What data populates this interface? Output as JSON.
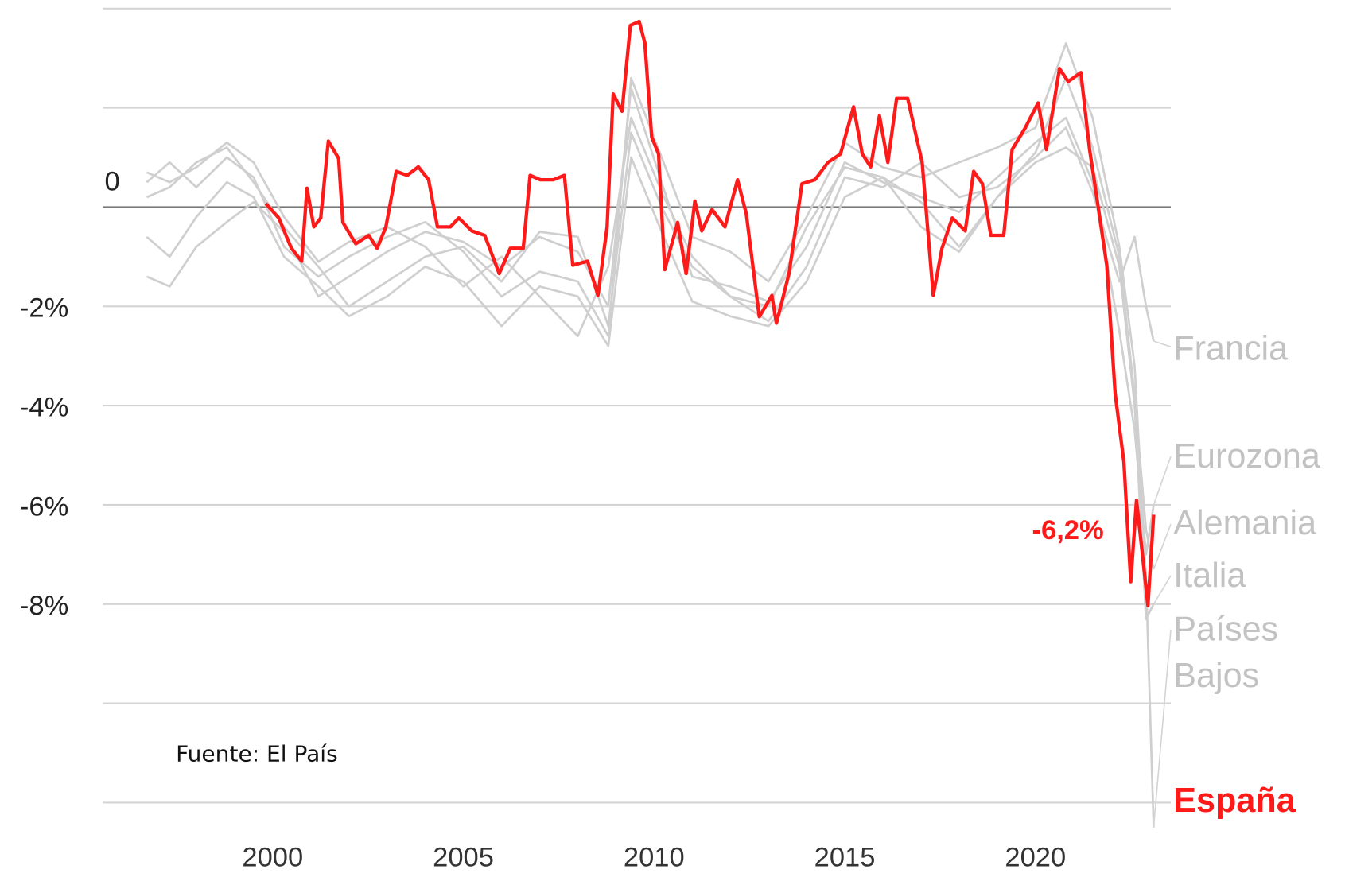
{
  "chart_data": {
    "type": "line",
    "source": "Fuente: El País",
    "xlim": [
      1995.55,
      2023.55
    ],
    "xticks": [
      2000,
      2005,
      2010,
      2015,
      2020
    ],
    "ylim": [
      -13.5,
      4
    ],
    "yticks": [
      {
        "value": 0,
        "label": "0"
      },
      {
        "value": -2,
        "label": "-2%"
      },
      {
        "value": -4,
        "label": "-4%"
      },
      {
        "value": -6,
        "label": "-6%"
      },
      {
        "value": -8,
        "label": "-8%"
      }
    ],
    "gridlines": [
      4,
      2,
      0,
      -2,
      -4,
      -6,
      -8,
      -10,
      -12
    ],
    "grid": true,
    "series": [
      {
        "name": "Francia",
        "color": "#cfcfcf",
        "x": [
          1996.7,
          1997.3,
          1998.0,
          1998.8,
          1999.5,
          2000.3,
          2001.2,
          2002.0,
          2003.0,
          2004.0,
          2005.0,
          2006.0,
          2007.0,
          2008.0,
          2008.8,
          2009.4,
          2010.2,
          2011.0,
          2012.0,
          2013.0,
          2014.0,
          2015.0,
          2016.0,
          2017.0,
          2018.0,
          2019.0,
          2020.0,
          2020.8,
          2021.5,
          2022.2,
          2022.6,
          2022.9,
          2023.1
        ],
        "values": [
          0.7,
          0.5,
          0.8,
          1.3,
          0.9,
          -0.2,
          -1.1,
          -0.7,
          -0.4,
          -0.8,
          -1.6,
          -1.0,
          -1.8,
          -2.6,
          -1.2,
          1.8,
          0.3,
          -1.0,
          -1.8,
          -2.3,
          -1.2,
          0.6,
          0.4,
          0.9,
          0.2,
          0.4,
          1.0,
          1.6,
          0.3,
          -1.5,
          -0.6,
          -2.0,
          -2.7
        ]
      },
      {
        "name": "Eurozona",
        "color": "#cfcfcf",
        "x": [
          1996.7,
          1997.3,
          1998.0,
          1998.8,
          1999.5,
          2000.3,
          2001.2,
          2002.0,
          2003.0,
          2004.0,
          2005.0,
          2006.0,
          2007.0,
          2008.0,
          2008.8,
          2009.4,
          2010.2,
          2011.0,
          2012.0,
          2013.0,
          2014.0,
          2015.0,
          2016.0,
          2017.0,
          2018.0,
          2019.0,
          2020.0,
          2020.8,
          2021.5,
          2022.2,
          2022.6,
          2022.9,
          2023.1
        ],
        "values": [
          -1.4,
          -1.6,
          -0.8,
          -0.3,
          0.1,
          -0.5,
          -1.8,
          -1.4,
          -0.9,
          -0.5,
          -0.7,
          -1.2,
          -0.6,
          -0.9,
          -2.0,
          2.4,
          0.5,
          -1.4,
          -1.6,
          -1.9,
          -0.8,
          0.9,
          0.5,
          0.2,
          -0.1,
          0.6,
          1.3,
          1.8,
          0.5,
          -2.5,
          -4.5,
          -7.0,
          -6.0
        ]
      },
      {
        "name": "Alemania",
        "color": "#cfcfcf",
        "x": [
          1996.7,
          1997.3,
          1998.0,
          1998.8,
          1999.5,
          2000.3,
          2001.2,
          2002.0,
          2003.0,
          2004.0,
          2005.0,
          2006.0,
          2007.0,
          2008.0,
          2008.8,
          2009.4,
          2010.2,
          2011.0,
          2012.0,
          2013.0,
          2014.0,
          2015.0,
          2016.0,
          2017.0,
          2018.0,
          2019.0,
          2020.0,
          2020.8,
          2021.5,
          2022.2,
          2022.6,
          2022.9,
          2023.1
        ],
        "values": [
          0.2,
          0.4,
          0.9,
          1.2,
          0.5,
          -0.4,
          -1.2,
          -2.0,
          -1.5,
          -1.0,
          -0.8,
          -1.5,
          -0.5,
          -0.6,
          -2.4,
          1.5,
          0.0,
          -1.2,
          -1.8,
          -2.0,
          -0.4,
          0.8,
          0.6,
          0.1,
          -0.8,
          0.2,
          1.1,
          2.6,
          1.2,
          -1.0,
          -3.8,
          -6.5,
          -7.3
        ]
      },
      {
        "name": "Italia",
        "color": "#cfcfcf",
        "x": [
          1996.7,
          1997.3,
          1998.0,
          1998.8,
          1999.5,
          2000.3,
          2001.2,
          2002.0,
          2003.0,
          2004.0,
          2005.0,
          2006.0,
          2007.0,
          2008.0,
          2008.8,
          2009.4,
          2010.2,
          2011.0,
          2012.0,
          2013.0,
          2014.0,
          2015.0,
          2016.0,
          2017.0,
          2018.0,
          2019.0,
          2020.0,
          2020.8,
          2021.5,
          2022.2,
          2022.6,
          2022.9,
          2023.1
        ],
        "values": [
          -0.6,
          -1.0,
          -0.2,
          0.5,
          0.2,
          -1.0,
          -1.6,
          -2.2,
          -1.8,
          -1.2,
          -1.5,
          -2.4,
          -1.6,
          -1.8,
          -2.8,
          1.0,
          -0.5,
          -1.9,
          -2.2,
          -2.4,
          -1.5,
          0.2,
          0.6,
          -0.4,
          -0.9,
          0.2,
          0.9,
          1.2,
          0.8,
          -1.2,
          -4.0,
          -8.3,
          -8.0
        ]
      },
      {
        "name": "Países Bajos",
        "color": "#cfcfcf",
        "x": [
          1996.7,
          1997.3,
          1998.0,
          1998.8,
          1999.5,
          2000.3,
          2001.2,
          2002.0,
          2003.0,
          2004.0,
          2005.0,
          2006.0,
          2007.0,
          2008.0,
          2008.8,
          2009.4,
          2010.2,
          2011.0,
          2012.0,
          2013.0,
          2014.0,
          2015.0,
          2016.0,
          2017.0,
          2018.0,
          2019.0,
          2020.0,
          2020.8,
          2021.5,
          2022.2,
          2022.6,
          2022.9,
          2023.1
        ],
        "values": [
          0.5,
          0.9,
          0.4,
          1.0,
          0.6,
          -0.8,
          -1.4,
          -1.0,
          -0.6,
          -0.3,
          -0.9,
          -1.8,
          -1.3,
          -1.5,
          -2.6,
          2.6,
          1.0,
          -0.6,
          -0.9,
          -1.5,
          -0.2,
          1.3,
          0.8,
          0.6,
          0.9,
          1.2,
          1.6,
          3.3,
          1.8,
          -0.8,
          -3.2,
          -7.5,
          -12.5
        ]
      },
      {
        "name": "España",
        "color": "#ff1a1a",
        "x": [
          1999.82,
          2000.16,
          2000.49,
          2000.76,
          2000.9,
          2001.08,
          2001.26,
          2001.46,
          2001.73,
          2001.84,
          2002.18,
          2002.52,
          2002.74,
          2002.97,
          2003.24,
          2003.53,
          2003.82,
          2004.09,
          2004.32,
          2004.66,
          2004.88,
          2005.22,
          2005.56,
          2005.94,
          2006.23,
          2006.57,
          2006.75,
          2007.02,
          2007.36,
          2007.65,
          2007.87,
          2008.26,
          2008.53,
          2008.77,
          2008.93,
          2009.16,
          2009.38,
          2009.61,
          2009.76,
          2009.94,
          2010.12,
          2010.28,
          2010.62,
          2010.84,
          2011.07,
          2011.25,
          2011.52,
          2011.86,
          2012.19,
          2012.42,
          2012.76,
          2013.09,
          2013.21,
          2013.54,
          2013.88,
          2014.22,
          2014.56,
          2014.89,
          2015.23,
          2015.46,
          2015.68,
          2015.91,
          2016.13,
          2016.36,
          2016.65,
          2017.03,
          2017.32,
          2017.55,
          2017.82,
          2018.16,
          2018.38,
          2018.61,
          2018.83,
          2019.17,
          2019.39,
          2019.73,
          2020.07,
          2020.29,
          2020.63,
          2020.86,
          2021.19,
          2021.42,
          2021.64,
          2021.87,
          2022.09,
          2022.32,
          2022.5,
          2022.65,
          2022.81,
          2022.95,
          2023.1
        ],
        "values": [
          0.07,
          -0.22,
          -0.83,
          -1.09,
          0.38,
          -0.4,
          -0.22,
          1.33,
          0.98,
          -0.31,
          -0.74,
          -0.57,
          -0.83,
          -0.4,
          0.72,
          0.64,
          0.81,
          0.55,
          -0.4,
          -0.4,
          -0.22,
          -0.48,
          -0.57,
          -1.34,
          -0.83,
          -0.83,
          0.64,
          0.55,
          0.55,
          0.64,
          -1.17,
          -1.09,
          -1.78,
          -0.4,
          2.28,
          1.93,
          3.66,
          3.74,
          3.31,
          1.41,
          1.07,
          -1.26,
          -0.31,
          -1.34,
          0.12,
          -0.48,
          -0.05,
          -0.4,
          0.55,
          -0.14,
          -2.21,
          -1.78,
          -2.34,
          -1.34,
          0.47,
          0.55,
          0.9,
          1.07,
          2.02,
          1.07,
          0.81,
          1.84,
          0.9,
          2.19,
          2.19,
          0.9,
          -1.78,
          -0.83,
          -0.22,
          -0.48,
          0.72,
          0.47,
          -0.57,
          -0.57,
          1.16,
          1.59,
          2.1,
          1.16,
          2.79,
          2.53,
          2.71,
          1.16,
          0.03,
          -1.17,
          -3.76,
          -5.14,
          -7.55,
          -5.91,
          -7.03,
          -8.03,
          -6.2
        ],
        "value_labels": [
          null,
          null,
          null,
          null,
          null,
          null,
          null,
          null,
          null,
          null,
          null,
          null,
          null,
          null,
          null,
          null,
          null,
          null,
          null,
          null,
          null,
          null,
          null,
          null,
          null,
          null,
          null,
          null,
          null,
          null,
          null,
          null,
          null,
          null,
          null,
          null,
          null,
          null,
          null,
          null,
          null,
          null,
          null,
          null,
          null,
          null,
          null,
          null,
          null,
          null,
          null,
          null,
          null,
          null,
          null,
          null,
          null,
          null,
          null,
          null,
          null,
          null,
          null,
          null,
          null,
          null,
          null,
          null,
          null,
          null,
          null,
          null,
          null,
          null,
          null,
          null,
          null,
          null,
          null,
          null,
          null,
          null,
          null,
          null,
          null,
          null,
          null,
          null,
          null,
          null,
          "-6,2%"
        ]
      }
    ]
  }
}
